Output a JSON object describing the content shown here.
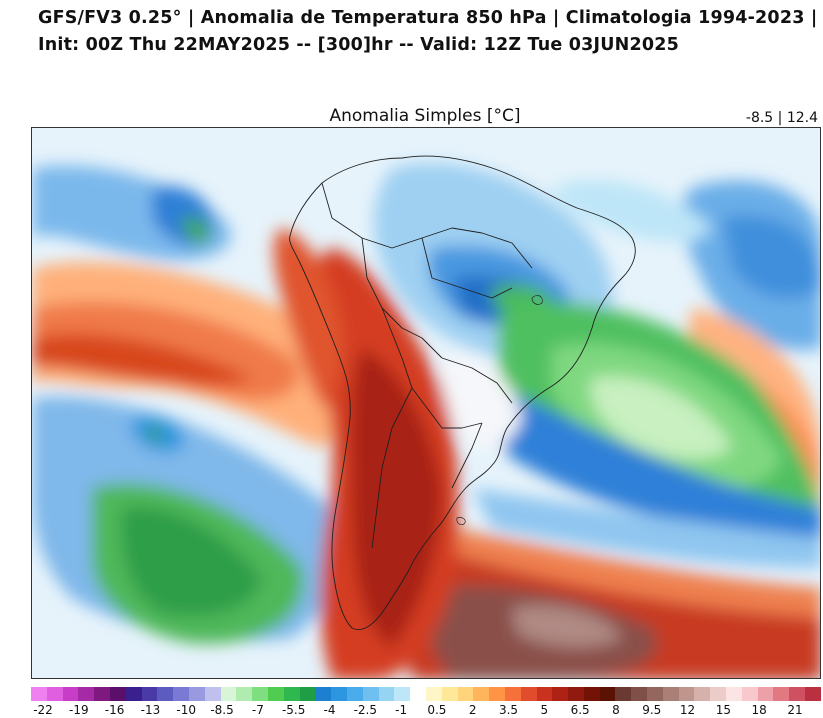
{
  "header": {
    "line1": "GFS/FV3 0.25° | Anomalia de Temperatura 850 hPa | Climatologia 1994-2023 |",
    "line2": "Init: 00Z Thu 22MAY2025 -- [300]hr -- Valid: 12Z Tue 03JUN2025"
  },
  "map": {
    "subtitle": "Anomalia Simples [°C]",
    "range": "-8.5 | 12.4"
  },
  "colorbar": {
    "colors": [
      "#f07ff0",
      "#e05ee0",
      "#c83dc8",
      "#a52aa5",
      "#7f187f",
      "#5a0f6a",
      "#3a1f8f",
      "#4a3aa8",
      "#5b5bc0",
      "#7a7ad4",
      "#9999e0",
      "#c0c0ee",
      "#d8f5d8",
      "#b0ecb0",
      "#7fde7f",
      "#50cc50",
      "#2fb84f",
      "#1f9e45",
      "#1c7fcf",
      "#2c96e0",
      "#4aaceb",
      "#6fc0f0",
      "#96d4f4",
      "#bde6f8",
      "#ffffff",
      "#fff6c8",
      "#ffe898",
      "#ffd47a",
      "#ffb55c",
      "#ff9444",
      "#f6703a",
      "#e04c2c",
      "#c8321e",
      "#ad2214",
      "#901a10",
      "#741208",
      "#5a1204",
      "#6a3a32",
      "#7e5048",
      "#94675e",
      "#a97f76",
      "#bf968e",
      "#d6b0aa",
      "#ecccc8",
      "#fde4e4",
      "#f8c8cc",
      "#eea0a8",
      "#e27882",
      "#cf5060",
      "#bb3040"
    ],
    "tick_labels": [
      "-22",
      "-19",
      "-16",
      "-13",
      "-10",
      "-8.5",
      "-7",
      "-5.5",
      "-4",
      "-2.5",
      "-1",
      "0.5",
      "2",
      "3.5",
      "5",
      "6.5",
      "8",
      "9.5",
      "12",
      "15",
      "18",
      "21"
    ]
  }
}
